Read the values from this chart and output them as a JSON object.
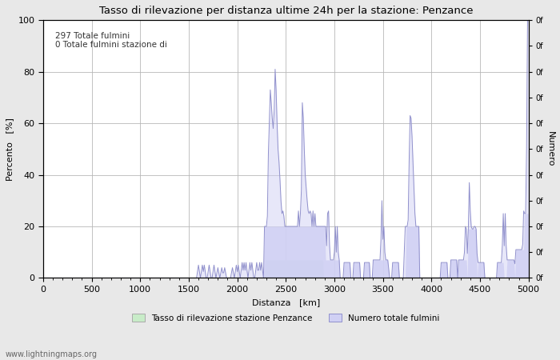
{
  "title": "Tasso di rilevazione per distanza ultime 24h per la stazione: Penzance",
  "xlabel": "Distanza   [km]",
  "ylabel_left": "Percento   [%]",
  "ylabel_right": "Numero",
  "annotation_line1": "297 Totale fulmini",
  "annotation_line2": "0 Totale fulmini stazione di",
  "xlim": [
    0,
    5000
  ],
  "ylim": [
    0,
    100
  ],
  "xticks": [
    0,
    500,
    1000,
    1500,
    2000,
    2500,
    3000,
    3500,
    4000,
    4500,
    5000
  ],
  "yticks_left": [
    0,
    20,
    40,
    60,
    80,
    100
  ],
  "watermark": "www.lightningmaps.org",
  "legend_label1": "Tasso di rilevazione stazione Penzance",
  "legend_label2": "Numero totale fulmini",
  "fill_color_green": "#c8ecc8",
  "fill_color_blue": "#d0d0f4",
  "line_color": "#9090cc",
  "background_color": "#e8e8e8",
  "plot_bg_color": "#ffffff"
}
